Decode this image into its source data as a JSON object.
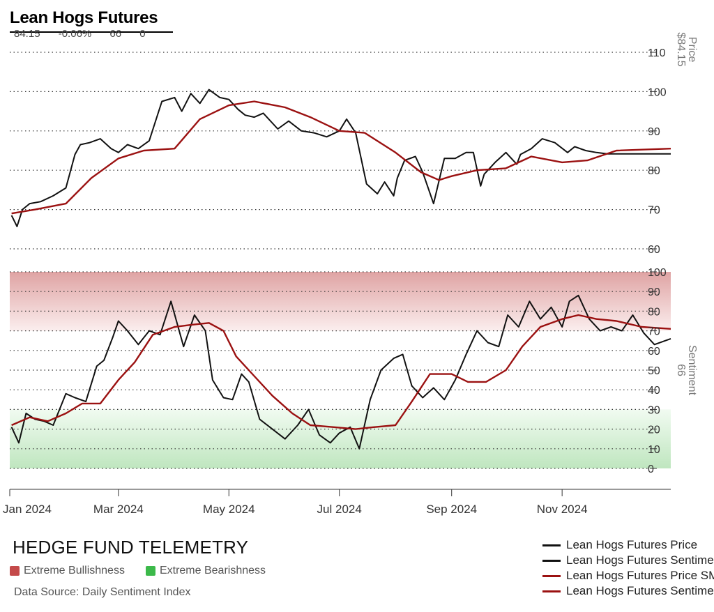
{
  "header": {
    "title": "Lean Hogs Futures",
    "stats": [
      "84.15",
      "-0.06%",
      "66",
      "0"
    ]
  },
  "footer": {
    "brand": "HEDGE FUND TELEMETRY",
    "source": "Data Source: Daily Sentiment Index",
    "zones": [
      {
        "label": "Extreme Bullishness",
        "color": "#c44a4a"
      },
      {
        "label": "Extreme Bearishness",
        "color": "#3cb94a"
      }
    ]
  },
  "legend": [
    {
      "label": "Lean Hogs Futures Price",
      "color": "#111111"
    },
    {
      "label": "Lean Hogs Futures Sentiment",
      "color": "#111111"
    },
    {
      "label": "Lean Hogs Futures Price SMA",
      "color": "#9b1111"
    },
    {
      "label": "Lean Hogs Futures Sentiment SMA",
      "color": "#9b1111"
    }
  ],
  "chart_data": [
    {
      "type": "line",
      "panel": "price",
      "axis_title": "Price",
      "axis_value": "$84.15",
      "ylim": [
        60,
        110
      ],
      "yticks": [
        110,
        100,
        90,
        80,
        70,
        60
      ],
      "grid": true,
      "series": [
        {
          "name": "Lean Hogs Futures Price",
          "color": "#111111",
          "x": [
            "2024-01-02",
            "2024-01-05",
            "2024-01-08",
            "2024-01-12",
            "2024-01-18",
            "2024-01-25",
            "2024-02-01",
            "2024-02-06",
            "2024-02-09",
            "2024-02-14",
            "2024-02-20",
            "2024-02-26",
            "2024-03-01",
            "2024-03-06",
            "2024-03-12",
            "2024-03-18",
            "2024-03-25",
            "2024-04-01",
            "2024-04-05",
            "2024-04-10",
            "2024-04-15",
            "2024-04-20",
            "2024-04-26",
            "2024-05-01",
            "2024-05-06",
            "2024-05-10",
            "2024-05-15",
            "2024-05-20",
            "2024-05-28",
            "2024-06-03",
            "2024-06-10",
            "2024-06-17",
            "2024-06-24",
            "2024-07-01",
            "2024-07-05",
            "2024-07-10",
            "2024-07-16",
            "2024-07-22",
            "2024-07-26",
            "2024-07-31",
            "2024-08-02",
            "2024-08-06",
            "2024-08-12",
            "2024-08-16",
            "2024-08-22",
            "2024-08-28",
            "2024-09-03",
            "2024-09-09",
            "2024-09-13",
            "2024-09-17",
            "2024-09-19",
            "2024-09-25",
            "2024-10-01",
            "2024-10-07",
            "2024-10-09",
            "2024-10-15",
            "2024-10-21",
            "2024-10-28",
            "2024-11-04",
            "2024-11-08",
            "2024-11-14",
            "2024-11-20",
            "2024-11-26",
            "2024-12-02",
            "2024-12-06",
            "2024-12-12",
            "2024-12-18",
            "2024-12-23",
            "2024-12-31"
          ],
          "y": [
            68.5,
            65.7,
            70.0,
            71.5,
            72.0,
            73.5,
            75.5,
            84.0,
            86.5,
            87.0,
            88.0,
            85.5,
            84.5,
            86.5,
            85.5,
            87.5,
            97.5,
            98.5,
            95.0,
            99.5,
            97.0,
            100.5,
            98.5,
            98.0,
            95.5,
            94.0,
            93.5,
            94.5,
            90.5,
            92.5,
            90.0,
            89.5,
            88.5,
            90.0,
            93.0,
            89.5,
            76.5,
            74.0,
            77.0,
            73.5,
            78.0,
            82.5,
            83.5,
            79.5,
            71.5,
            83.0,
            83.0,
            84.5,
            84.5,
            76.0,
            79.0,
            82.0,
            84.5,
            81.5,
            84.0,
            85.5,
            88.0,
            87.0,
            84.5,
            86.0,
            85.0,
            84.5,
            84.15,
            84.15,
            84.15,
            84.15,
            84.15,
            84.15,
            84.15
          ]
        },
        {
          "name": "Lean Hogs Futures Price SMA",
          "color": "#9b1111",
          "x": [
            "2024-01-02",
            "2024-01-15",
            "2024-02-01",
            "2024-02-15",
            "2024-03-01",
            "2024-03-15",
            "2024-04-01",
            "2024-04-15",
            "2024-05-01",
            "2024-05-15",
            "2024-06-01",
            "2024-06-15",
            "2024-07-01",
            "2024-07-15",
            "2024-08-01",
            "2024-08-15",
            "2024-08-25",
            "2024-09-01",
            "2024-09-15",
            "2024-10-01",
            "2024-10-15",
            "2024-11-01",
            "2024-11-15",
            "2024-12-01",
            "2024-12-31"
          ],
          "y": [
            69.0,
            70.0,
            71.5,
            78.0,
            83.0,
            85.0,
            85.5,
            93.0,
            96.5,
            97.5,
            96.0,
            93.5,
            90.0,
            89.5,
            84.5,
            79.5,
            77.5,
            78.5,
            80.0,
            80.5,
            83.5,
            82.0,
            82.5,
            85.0,
            85.5
          ]
        }
      ]
    },
    {
      "type": "line",
      "panel": "sentiment",
      "axis_title": "Sentiment",
      "axis_value": "66",
      "ylim": [
        0,
        100
      ],
      "yticks": [
        100,
        90,
        80,
        70,
        60,
        50,
        40,
        30,
        20,
        10,
        0
      ],
      "grid": true,
      "bands": [
        {
          "from": 70,
          "to": 100,
          "label": "Extreme Bullishness"
        },
        {
          "from": 0,
          "to": 30,
          "label": "Extreme Bearishness"
        }
      ],
      "series": [
        {
          "name": "Lean Hogs Futures Sentiment",
          "color": "#111111",
          "x": [
            "2024-01-02",
            "2024-01-06",
            "2024-01-10",
            "2024-01-15",
            "2024-01-20",
            "2024-01-25",
            "2024-02-01",
            "2024-02-06",
            "2024-02-12",
            "2024-02-18",
            "2024-02-22",
            "2024-02-27",
            "2024-03-01",
            "2024-03-06",
            "2024-03-12",
            "2024-03-18",
            "2024-03-24",
            "2024-03-30",
            "2024-04-06",
            "2024-04-12",
            "2024-04-18",
            "2024-04-22",
            "2024-04-28",
            "2024-05-03",
            "2024-05-08",
            "2024-05-12",
            "2024-05-18",
            "2024-05-25",
            "2024-06-01",
            "2024-06-08",
            "2024-06-14",
            "2024-06-20",
            "2024-06-26",
            "2024-07-01",
            "2024-07-07",
            "2024-07-12",
            "2024-07-18",
            "2024-07-24",
            "2024-07-31",
            "2024-08-05",
            "2024-08-10",
            "2024-08-16",
            "2024-08-22",
            "2024-08-28",
            "2024-09-03",
            "2024-09-09",
            "2024-09-15",
            "2024-09-21",
            "2024-09-27",
            "2024-10-02",
            "2024-10-08",
            "2024-10-14",
            "2024-10-20",
            "2024-10-26",
            "2024-11-01",
            "2024-11-05",
            "2024-11-10",
            "2024-11-16",
            "2024-11-22",
            "2024-11-28",
            "2024-12-04",
            "2024-12-10",
            "2024-12-16",
            "2024-12-22",
            "2024-12-31"
          ],
          "y": [
            21,
            13,
            28,
            25,
            24,
            22,
            38,
            36,
            34,
            52,
            55,
            67,
            75,
            70,
            63,
            70,
            68,
            85,
            62,
            78,
            70,
            45,
            36,
            35,
            48,
            44,
            25,
            20,
            15,
            22,
            30,
            17,
            13,
            18,
            21,
            10,
            35,
            50,
            56,
            58,
            42,
            36,
            41,
            35,
            45,
            58,
            70,
            64,
            62,
            78,
            72,
            85,
            76,
            82,
            72,
            85,
            88,
            76,
            70,
            72,
            70,
            78,
            69,
            63,
            66
          ]
        },
        {
          "name": "Lean Hogs Futures Sentiment SMA",
          "color": "#9b1111",
          "x": [
            "2024-01-02",
            "2024-01-12",
            "2024-01-22",
            "2024-02-01",
            "2024-02-10",
            "2024-02-20",
            "2024-03-01",
            "2024-03-10",
            "2024-03-20",
            "2024-04-01",
            "2024-04-10",
            "2024-04-20",
            "2024-04-28",
            "2024-05-05",
            "2024-05-15",
            "2024-05-25",
            "2024-06-05",
            "2024-06-15",
            "2024-06-28",
            "2024-07-10",
            "2024-07-20",
            "2024-08-01",
            "2024-08-10",
            "2024-08-20",
            "2024-09-01",
            "2024-09-10",
            "2024-09-20",
            "2024-10-01",
            "2024-10-10",
            "2024-10-20",
            "2024-11-01",
            "2024-11-10",
            "2024-11-20",
            "2024-12-01",
            "2024-12-15",
            "2024-12-31"
          ],
          "y": [
            22,
            26,
            24,
            28,
            33,
            33,
            45,
            54,
            68,
            72,
            73,
            74,
            70,
            57,
            47,
            37,
            28,
            22,
            21,
            20,
            21,
            22,
            34,
            48,
            48,
            44,
            44,
            50,
            62,
            72,
            76,
            78,
            76,
            75,
            72,
            71
          ]
        }
      ]
    }
  ],
  "x_axis": {
    "start": "2024-01-01",
    "end": "2024-12-31",
    "ticks": [
      {
        "date": "2024-01-01",
        "label": "Jan 2024"
      },
      {
        "date": "2024-03-01",
        "label": "Mar 2024"
      },
      {
        "date": "2024-05-01",
        "label": "May 2024"
      },
      {
        "date": "2024-07-01",
        "label": "Jul 2024"
      },
      {
        "date": "2024-09-01",
        "label": "Sep 2024"
      },
      {
        "date": "2024-11-01",
        "label": "Nov 2024"
      }
    ]
  }
}
